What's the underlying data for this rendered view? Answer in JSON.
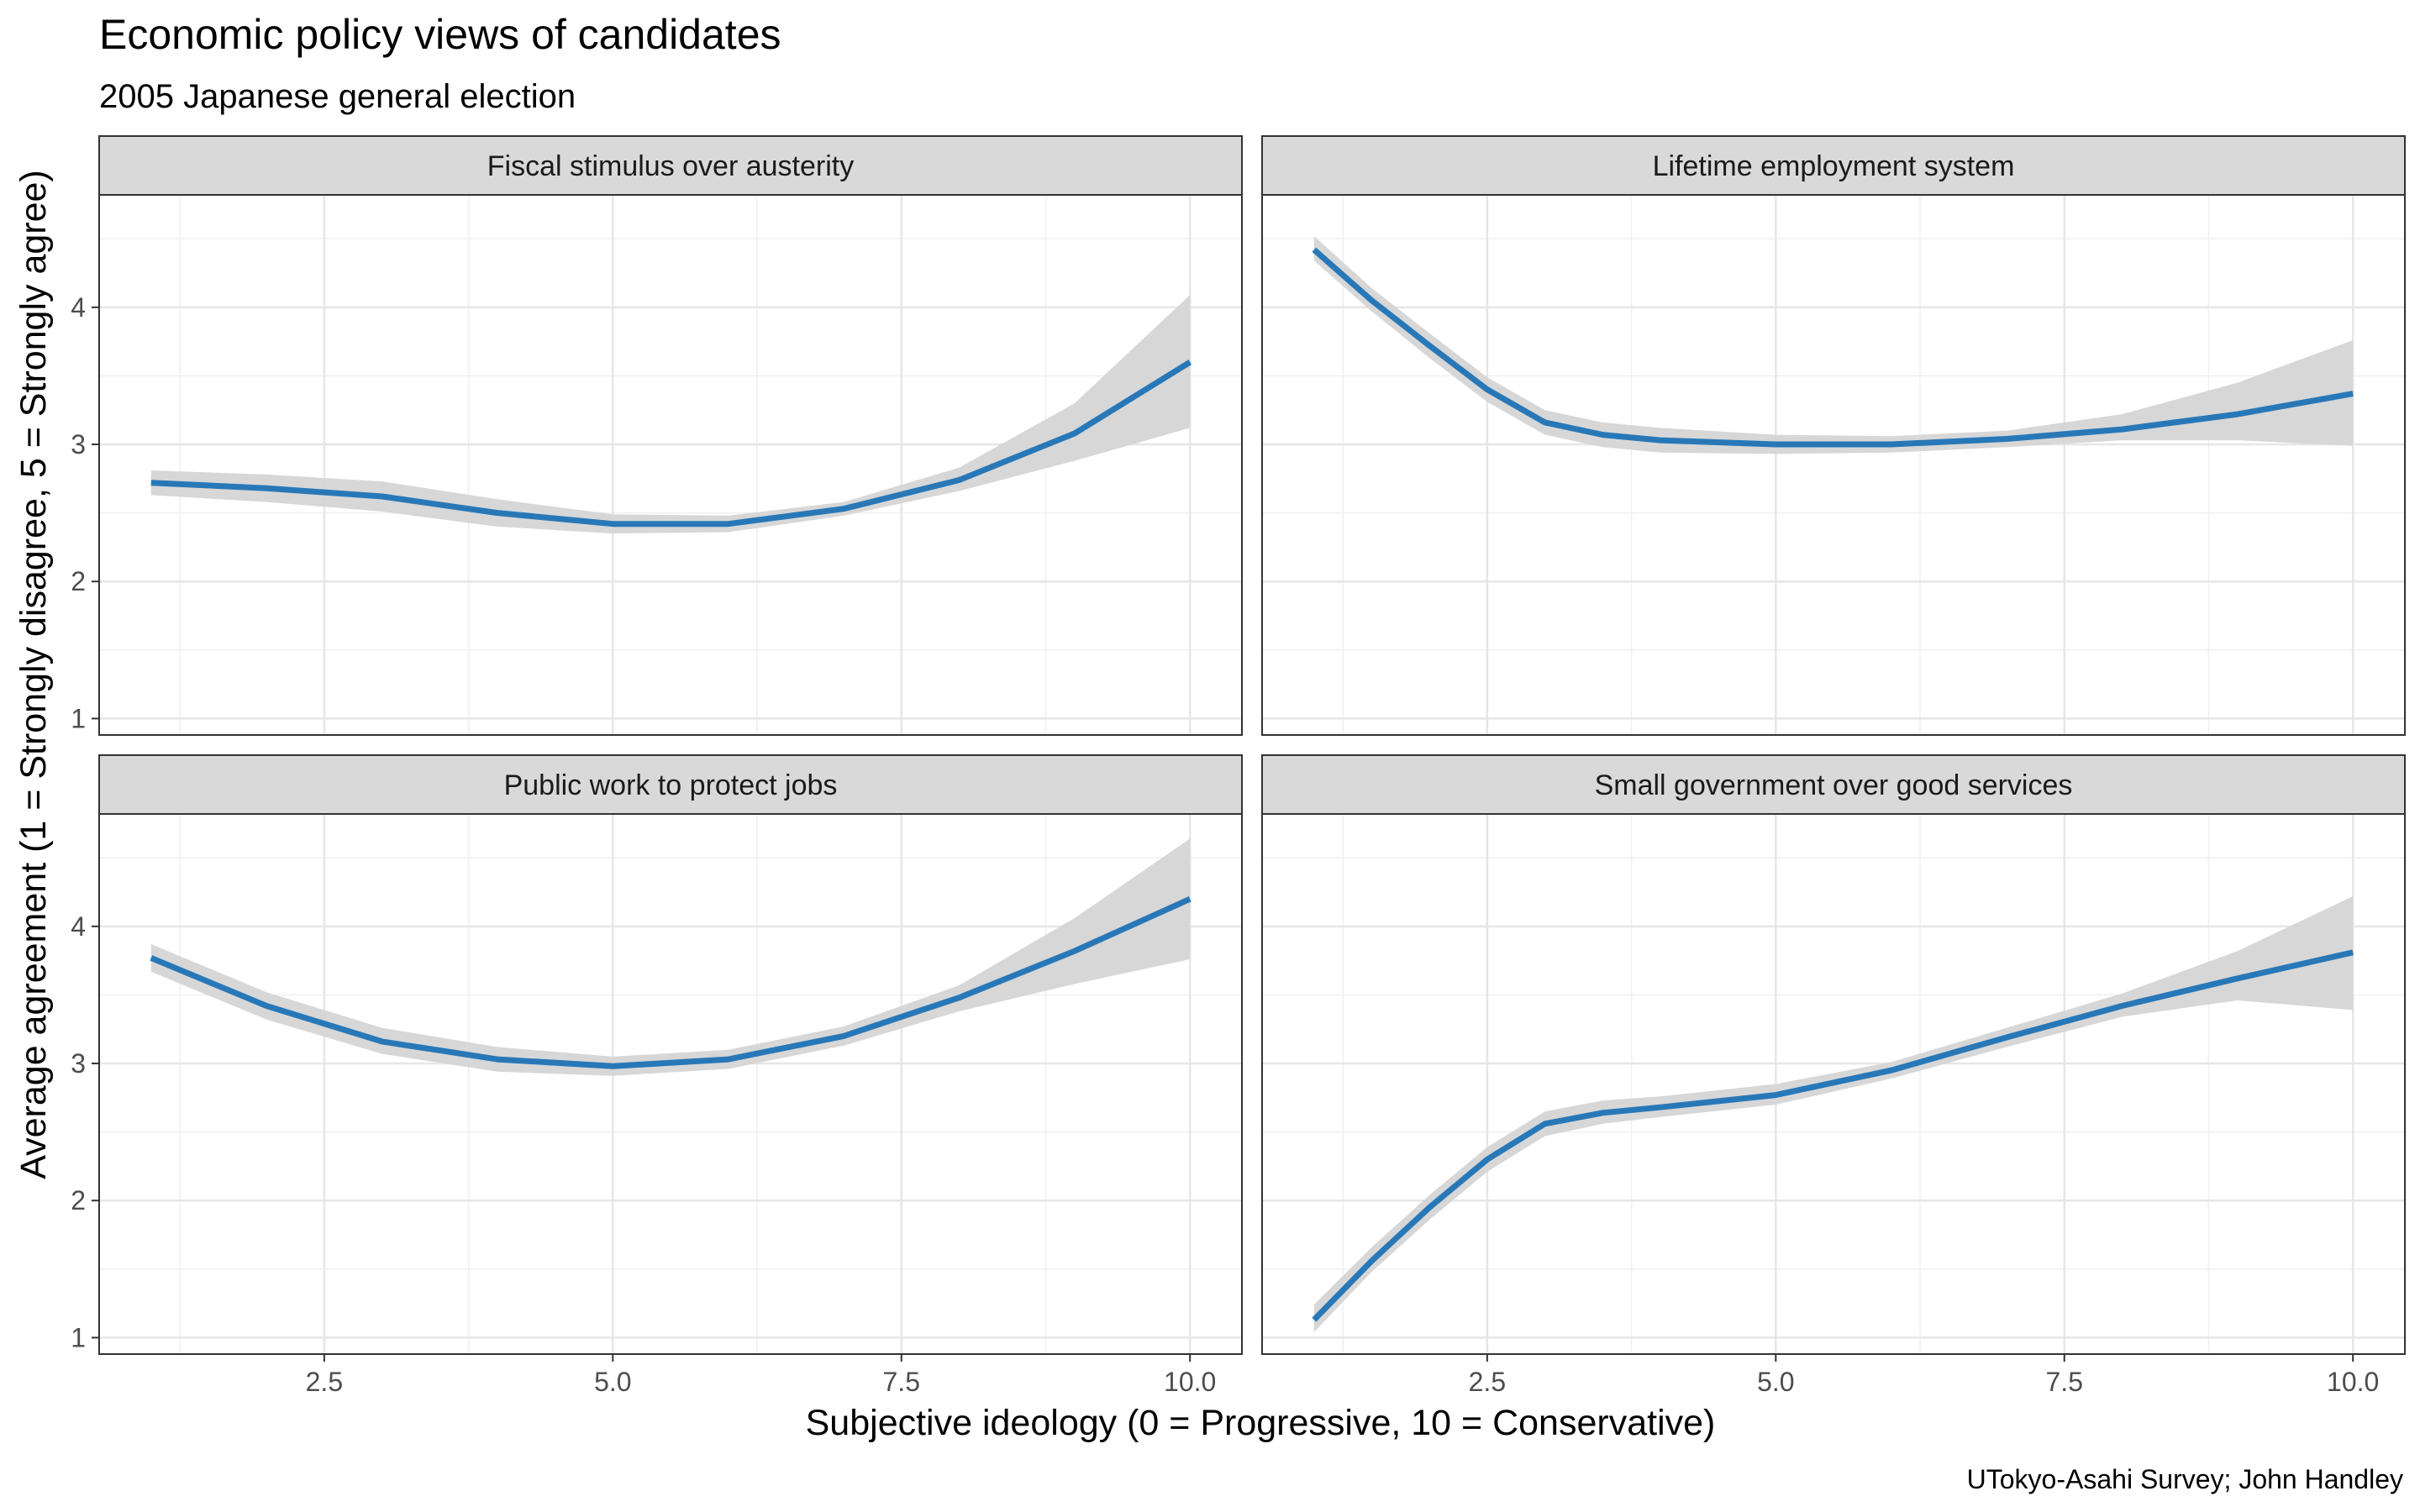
{
  "chart_data": {
    "type": "line",
    "title": "Economic policy views of candidates",
    "subtitle": "2005 Japanese general election",
    "xlabel": "Subjective ideology (0 = Progressive, 10 = Conservative)",
    "ylabel": "Average agreement (1 = Strongly disagree, 5 = Strongly agree)",
    "caption": "UTokyo-Asahi Survey; John Handley",
    "xlim": [
      0.55,
      10.45
    ],
    "ylim": [
      0.88,
      4.82
    ],
    "x_ticks": [
      2.5,
      5.0,
      7.5,
      10.0
    ],
    "x_tick_labels": [
      "2.5",
      "5.0",
      "7.5",
      "10.0"
    ],
    "y_ticks": [
      1,
      2,
      3,
      4
    ],
    "y_tick_labels": [
      "1",
      "2",
      "3",
      "4"
    ],
    "grid": true,
    "line_color": "#2878b8",
    "band_color": "#d5d5d5",
    "strip_color": "#d9d9d9",
    "panels": [
      {
        "name": "Fiscal stimulus over austerity",
        "x": [
          1,
          2,
          3,
          4,
          5,
          6,
          7,
          8,
          9,
          10
        ],
        "y": [
          2.72,
          2.68,
          2.62,
          2.5,
          2.42,
          2.42,
          2.53,
          2.74,
          3.08,
          3.6
        ],
        "lower": [
          2.63,
          2.58,
          2.51,
          2.4,
          2.35,
          2.36,
          2.48,
          2.66,
          2.88,
          3.12
        ],
        "upper": [
          2.81,
          2.78,
          2.73,
          2.6,
          2.49,
          2.48,
          2.58,
          2.83,
          3.3,
          4.09
        ]
      },
      {
        "name": "Lifetime employment system",
        "x": [
          1,
          1.5,
          2,
          2.5,
          3,
          3.5,
          4,
          5,
          6,
          7,
          8,
          9,
          10
        ],
        "y": [
          4.42,
          4.05,
          3.72,
          3.4,
          3.16,
          3.07,
          3.03,
          3.0,
          3.0,
          3.04,
          3.11,
          3.22,
          3.37
        ],
        "lower": [
          4.34,
          3.97,
          3.63,
          3.31,
          3.07,
          2.98,
          2.94,
          2.93,
          2.94,
          2.98,
          3.03,
          3.03,
          2.99
        ],
        "upper": [
          4.52,
          4.14,
          3.81,
          3.49,
          3.25,
          3.16,
          3.12,
          3.07,
          3.06,
          3.1,
          3.22,
          3.45,
          3.76
        ]
      },
      {
        "name": "Public work to protect jobs",
        "x": [
          1,
          2,
          3,
          4,
          5,
          6,
          7,
          8,
          9,
          10
        ],
        "y": [
          3.77,
          3.42,
          3.16,
          3.03,
          2.98,
          3.03,
          3.2,
          3.48,
          3.82,
          4.2
        ],
        "lower": [
          3.67,
          3.32,
          3.07,
          2.94,
          2.91,
          2.96,
          3.13,
          3.38,
          3.58,
          3.76
        ],
        "upper": [
          3.87,
          3.52,
          3.26,
          3.12,
          3.05,
          3.1,
          3.27,
          3.57,
          4.06,
          4.64
        ]
      },
      {
        "name": "Small government over good services",
        "x": [
          1,
          1.5,
          2,
          2.5,
          3,
          3.5,
          4,
          5,
          6,
          7,
          8,
          9,
          10
        ],
        "y": [
          1.13,
          1.56,
          1.95,
          2.3,
          2.56,
          2.64,
          2.68,
          2.77,
          2.95,
          3.19,
          3.42,
          3.62,
          3.81
        ],
        "lower": [
          1.04,
          1.48,
          1.86,
          2.21,
          2.47,
          2.56,
          2.61,
          2.7,
          2.89,
          3.12,
          3.34,
          3.46,
          3.39
        ],
        "upper": [
          1.24,
          1.66,
          2.04,
          2.39,
          2.65,
          2.73,
          2.76,
          2.85,
          3.01,
          3.26,
          3.51,
          3.82,
          4.22
        ]
      }
    ]
  }
}
